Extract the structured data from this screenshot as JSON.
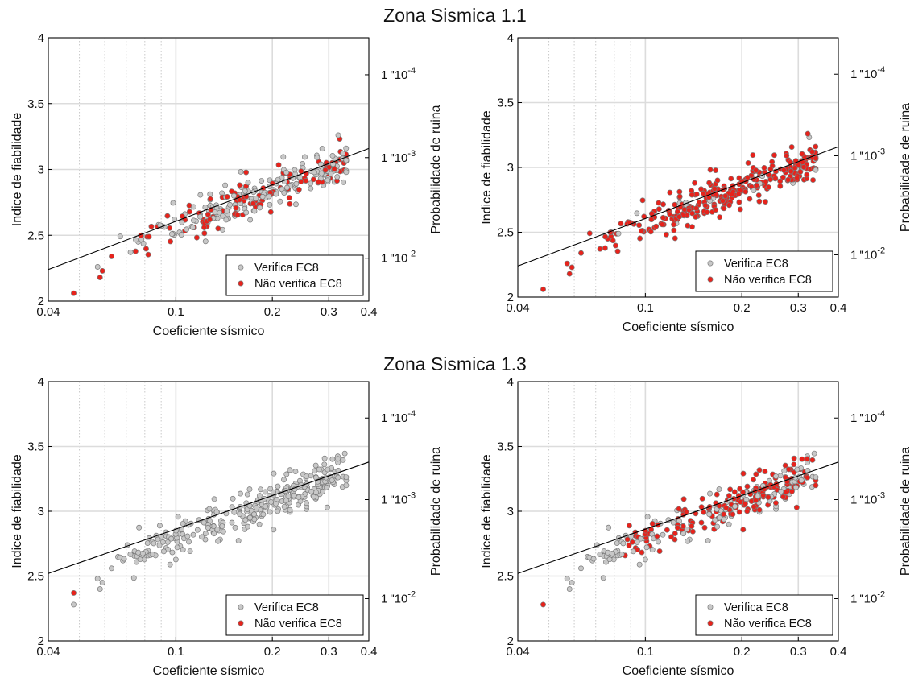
{
  "figure": {
    "section_titles": [
      "Zona Sismica 1.1",
      "Zona Sismica 1.3"
    ]
  },
  "colors": {
    "verifica": "#c8c8c8",
    "nao_verifica": "#e8221b",
    "marker_edge": "#7a7a7a",
    "fit_line": "#000000",
    "grid": "#dcdcdc",
    "minor_grid": "#c9c9c9"
  },
  "chart_data": [
    {
      "type": "scatter",
      "section": "Zona Sismica 1.1",
      "xlabel": "Coeficiente sísmico",
      "ylabel": "Indice de fiabilidade",
      "ylabel_right": "Probabilidade de ruina",
      "xscale": "log",
      "xlim": [
        0.04,
        0.4
      ],
      "ylim": [
        2,
        4
      ],
      "xticks": [
        0.04,
        0.1,
        0.2,
        0.3,
        0.4
      ],
      "xtick_labels": [
        "0.04",
        "0.1",
        "0.2",
        "0.3",
        "0.4"
      ],
      "yticks": [
        2,
        2.5,
        3,
        3.5,
        4
      ],
      "ytick_labels": [
        "2",
        "2.5",
        "3",
        "3.5",
        "4"
      ],
      "right_ticks": [
        {
          "label": "1*10^-2",
          "beta": 2.326
        },
        {
          "label": "1*10^-3",
          "beta": 3.09
        },
        {
          "label": "1*10^-4",
          "beta": 3.719
        }
      ],
      "grid": true,
      "legend_position": "bottom-right",
      "legend": [
        "Verifica EC8",
        "Não verifica EC8"
      ],
      "fit_line": {
        "x": [
          0.04,
          0.4
        ],
        "y": [
          2.24,
          3.16
        ]
      },
      "red_fraction": 0.45,
      "scatter_offset": 0.0,
      "seed": 11
    },
    {
      "type": "scatter",
      "section": "Zona Sismica 1.1",
      "xlabel": "Coeficiente sísmico",
      "ylabel": "Indice de fiabilidade",
      "ylabel_right": "Probabilidade de ruina",
      "xscale": "log",
      "xlim": [
        0.04,
        0.4
      ],
      "ylim": [
        2,
        4
      ],
      "xticks": [
        0.04,
        0.1,
        0.2,
        0.3,
        0.4
      ],
      "xtick_labels": [
        "0.04",
        "0.1",
        "0.2",
        "0.3",
        "0.4"
      ],
      "yticks": [
        2,
        2.5,
        3,
        3.5,
        4
      ],
      "ytick_labels": [
        "2",
        "2.5",
        "3",
        "3.5",
        "4"
      ],
      "right_ticks": [
        {
          "label": "1*10^-2",
          "beta": 2.326
        },
        {
          "label": "1*10^-3",
          "beta": 3.09
        },
        {
          "label": "1*10^-4",
          "beta": 3.719
        }
      ],
      "grid": true,
      "legend_position": "bottom-right",
      "legend": [
        "Verifica EC8",
        "Não verifica EC8"
      ],
      "fit_line": {
        "x": [
          0.04,
          0.4
        ],
        "y": [
          2.24,
          3.16
        ]
      },
      "red_fraction": 0.9,
      "scatter_offset": 0.0,
      "seed": 11
    },
    {
      "type": "scatter",
      "section": "Zona Sismica 1.3",
      "xlabel": "Coeficiente sísmico",
      "ylabel": "Indice de fiabilidade",
      "ylabel_right": "Probabilidade de ruina",
      "xscale": "log",
      "xlim": [
        0.04,
        0.4
      ],
      "ylim": [
        2,
        4
      ],
      "xticks": [
        0.04,
        0.1,
        0.2,
        0.3,
        0.4
      ],
      "xtick_labels": [
        "0.04",
        "0.1",
        "0.2",
        "0.3",
        "0.4"
      ],
      "yticks": [
        2,
        2.5,
        3,
        3.5,
        4
      ],
      "ytick_labels": [
        "2",
        "2.5",
        "3",
        "3.5",
        "4"
      ],
      "right_ticks": [
        {
          "label": "1*10^-2",
          "beta": 2.326
        },
        {
          "label": "1*10^-3",
          "beta": 3.09
        },
        {
          "label": "1*10^-4",
          "beta": 3.719
        }
      ],
      "grid": true,
      "legend_position": "bottom-right",
      "legend": [
        "Verifica EC8",
        "Não verifica EC8"
      ],
      "fit_line": {
        "x": [
          0.04,
          0.4
        ],
        "y": [
          2.52,
          3.38
        ]
      },
      "red_fraction": 0.0,
      "red_points": [
        {
          "x": 0.048,
          "y": 2.37
        }
      ],
      "scatter_offset": 0.22,
      "seed": 23
    },
    {
      "type": "scatter",
      "section": "Zona Sismica 1.3",
      "xlabel": "Coeficiente sísmico",
      "ylabel": "Indice de fiabilidade",
      "ylabel_right": "Probabilidade de ruina",
      "xscale": "log",
      "xlim": [
        0.04,
        0.4
      ],
      "ylim": [
        2,
        4
      ],
      "xticks": [
        0.04,
        0.1,
        0.2,
        0.3,
        0.4
      ],
      "xtick_labels": [
        "0.04",
        "0.1",
        "0.2",
        "0.3",
        "0.4"
      ],
      "yticks": [
        2,
        2.5,
        3,
        3.5,
        4
      ],
      "ytick_labels": [
        "2",
        "2.5",
        "3",
        "3.5",
        "4"
      ],
      "right_ticks": [
        {
          "label": "1*10^-2",
          "beta": 2.326
        },
        {
          "label": "1*10^-3",
          "beta": 3.09
        },
        {
          "label": "1*10^-4",
          "beta": 3.719
        }
      ],
      "grid": true,
      "legend_position": "bottom-right",
      "legend": [
        "Verifica EC8",
        "Não verifica EC8"
      ],
      "fit_line": {
        "x": [
          0.04,
          0.4
        ],
        "y": [
          2.52,
          3.38
        ]
      },
      "red_fraction": 0.62,
      "red_min_x": 0.085,
      "scatter_offset": 0.22,
      "seed": 23
    }
  ]
}
